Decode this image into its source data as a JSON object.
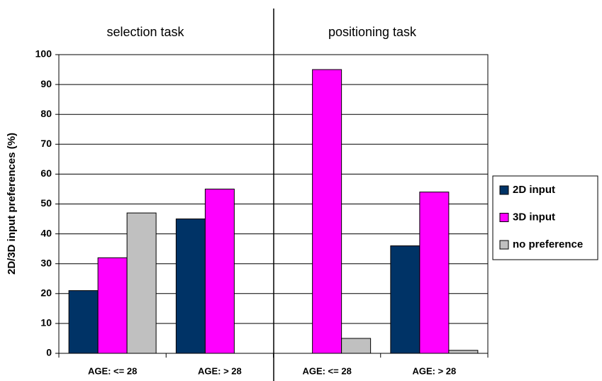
{
  "chart_data": {
    "type": "bar",
    "y_label": "2D/3D input preferences (%)",
    "annotations": [
      "selection task",
      "positioning task"
    ],
    "categories": [
      "AGE: <= 28",
      "AGE: > 28",
      "AGE: <= 28",
      "AGE: > 28"
    ],
    "series": [
      {
        "name": "2D input",
        "color": "#003366",
        "values": [
          21,
          45,
          0,
          36
        ]
      },
      {
        "name": "3D input",
        "color": "#ff00ff",
        "values": [
          32,
          55,
          95,
          54
        ]
      },
      {
        "name": "no preference",
        "color": "#c0c0c0",
        "values": [
          47,
          0,
          5,
          1
        ]
      }
    ],
    "ylim": [
      0,
      100
    ],
    "yticks": [
      0,
      10,
      20,
      30,
      40,
      50,
      60,
      70,
      80,
      90,
      100
    ],
    "grid": true,
    "legend": "right"
  }
}
